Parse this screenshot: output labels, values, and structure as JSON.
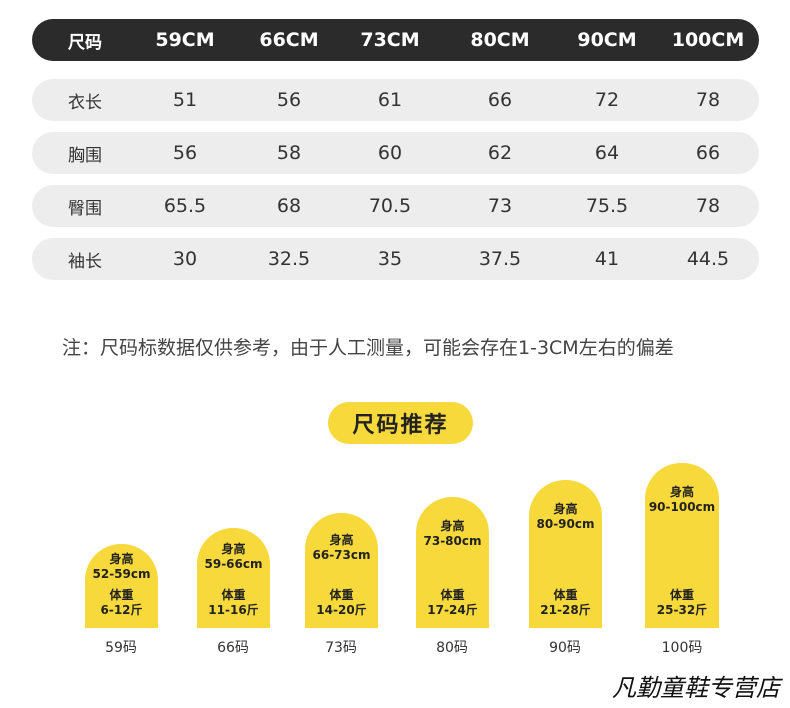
{
  "table": {
    "header": {
      "label": "尺码",
      "cols": [
        "59CM",
        "66CM",
        "73CM",
        "80CM",
        "90CM",
        "100CM"
      ]
    },
    "rows": [
      {
        "label": "衣长",
        "values": [
          "51",
          "56",
          "61",
          "66",
          "72",
          "78"
        ]
      },
      {
        "label": "胸围",
        "values": [
          "56",
          "58",
          "60",
          "62",
          "64",
          "66"
        ]
      },
      {
        "label": "臀围",
        "values": [
          "65.5",
          "68",
          "70.5",
          "73",
          "75.5",
          "78"
        ]
      },
      {
        "label": "袖长",
        "values": [
          "30",
          "32.5",
          "35",
          "37.5",
          "41",
          "44.5"
        ]
      }
    ]
  },
  "note": "注：尺码标数据仅供参考，由于人工测量，可能会存在1-3CM左右的偏差",
  "recommend": {
    "title": "尺码推荐",
    "height_label": "身高",
    "weight_label": "体重",
    "items": [
      {
        "height": "52-59cm",
        "weight": "6-12斤",
        "size": "59码"
      },
      {
        "height": "59-66cm",
        "weight": "11-16斤",
        "size": "66码"
      },
      {
        "height": "66-73cm",
        "weight": "14-20斤",
        "size": "73码"
      },
      {
        "height": "73-80cm",
        "weight": "17-24斤",
        "size": "80码"
      },
      {
        "height": "80-90cm",
        "weight": "21-28斤",
        "size": "90码"
      },
      {
        "height": "90-100cm",
        "weight": "25-32斤",
        "size": "100码"
      }
    ]
  },
  "brand": "凡勤童鞋专营店",
  "colors": {
    "header_bg": "#2b2b2b",
    "row_bg": "#ededed",
    "accent_yellow": "#f7d93b"
  }
}
